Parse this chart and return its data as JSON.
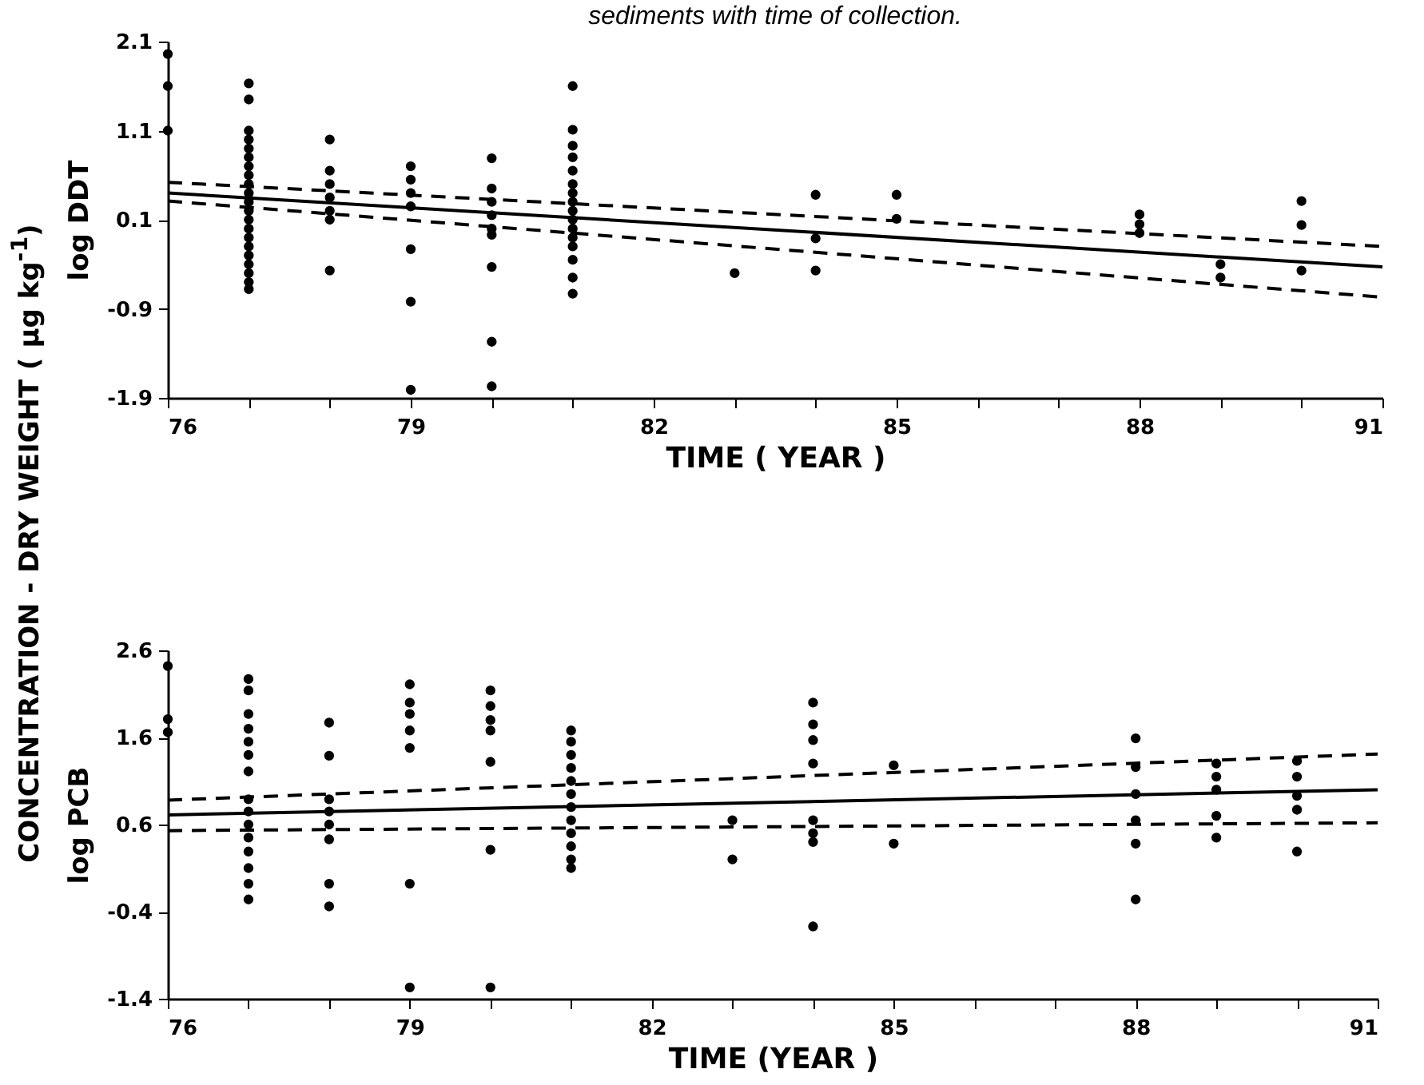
{
  "chart_data": [
    {
      "type": "scatter",
      "title": "sediments with time of collection.",
      "xlabel": "TIME ( YEAR )",
      "ylabel": "log DDT",
      "annotations": [
        "CONCENTRATION - DRY WEIGHT ( µg kg$^{-1}$)"
      ],
      "grid": false,
      "xlim": [
        76,
        91
      ],
      "xticks": [
        76,
        {
          "value": 77,
          "label": null
        },
        {
          "value": 78,
          "label": null
        },
        79,
        {
          "value": 80,
          "label": null
        },
        {
          "value": 81,
          "label": null
        },
        82,
        {
          "value": 83,
          "label": null
        },
        {
          "value": 84,
          "label": null
        },
        85,
        {
          "value": 86,
          "label": null
        },
        {
          "value": 87,
          "label": null
        },
        88,
        {
          "value": 89,
          "label": null
        },
        {
          "value": 90,
          "label": null
        },
        91
      ],
      "ylim": [
        -1.9,
        2.1
      ],
      "yticks": [
        -1.9,
        -0.9,
        0.1,
        1.1,
        2.1
      ],
      "series": [
        {
          "marker": "circle",
          "color": "#000000",
          "x": [
            76,
            76,
            76,
            77,
            77,
            77,
            77,
            77,
            77,
            77,
            77,
            77,
            77,
            77,
            77,
            77,
            77,
            77,
            77,
            77,
            77,
            77,
            77,
            77,
            78,
            78,
            78,
            78,
            78,
            78,
            78,
            79,
            79,
            79,
            79,
            79,
            79,
            79,
            80,
            80,
            80,
            80,
            80,
            80,
            80,
            80,
            80,
            81,
            81,
            81,
            81,
            81,
            81,
            81,
            81,
            81,
            81,
            81,
            81,
            81,
            81,
            81,
            81,
            83,
            84,
            84,
            84,
            85,
            85,
            88,
            88,
            88,
            89,
            89,
            90,
            90,
            90
          ],
          "values": [
            1.96,
            1.6,
            1.1,
            1.63,
            1.45,
            1.1,
            1.0,
            0.9,
            0.8,
            0.7,
            0.6,
            0.5,
            0.4,
            0.3,
            0.2,
            0.1,
            0.0,
            -0.1,
            -0.2,
            -0.3,
            -0.4,
            -0.5,
            -0.6,
            -0.68,
            1.0,
            0.65,
            0.5,
            0.35,
            0.2,
            0.1,
            -0.47,
            0.7,
            0.55,
            0.4,
            0.25,
            -0.23,
            -0.82,
            -1.81,
            0.79,
            0.45,
            0.3,
            0.15,
            0.0,
            -0.07,
            -0.43,
            -1.27,
            -1.77,
            1.6,
            1.11,
            0.93,
            0.8,
            0.65,
            0.5,
            0.4,
            0.3,
            0.2,
            0.1,
            0.0,
            -0.1,
            -0.2,
            -0.35,
            -0.55,
            -0.73,
            -0.5,
            0.38,
            -0.11,
            -0.47,
            0.38,
            0.11,
            0.16,
            0.05,
            -0.05,
            -0.4,
            -0.55,
            0.31,
            0.04,
            -0.47
          ]
        },
        {
          "type": "line",
          "color": "#000000",
          "line_style": "solid",
          "x": [
            76,
            91
          ],
          "values": [
            0.4,
            -0.43
          ]
        },
        {
          "type": "line",
          "color": "#000000",
          "line_style": "dashed",
          "x": [
            76,
            91
          ],
          "values": [
            0.52,
            -0.2
          ]
        },
        {
          "type": "line",
          "color": "#000000",
          "line_style": "dashed",
          "x": [
            76,
            91
          ],
          "values": [
            0.31,
            -0.77
          ]
        }
      ]
    },
    {
      "type": "scatter",
      "xlabel": "TIME (YEAR )",
      "ylabel": "log PCB",
      "grid": false,
      "xlim": [
        76,
        91
      ],
      "xticks": [
        76,
        {
          "value": 77,
          "label": null
        },
        {
          "value": 78,
          "label": null
        },
        79,
        {
          "value": 80,
          "label": null
        },
        {
          "value": 81,
          "label": null
        },
        82,
        {
          "value": 83,
          "label": null
        },
        {
          "value": 84,
          "label": null
        },
        85,
        {
          "value": 86,
          "label": null
        },
        {
          "value": 87,
          "label": null
        },
        88,
        {
          "value": 89,
          "label": null
        },
        {
          "value": 90,
          "label": null
        },
        91
      ],
      "ylim": [
        -1.4,
        2.6
      ],
      "yticks": [
        -1.4,
        -0.4,
        0.6,
        1.6,
        2.6
      ],
      "series": [
        {
          "marker": "circle",
          "color": "#000000",
          "x": [
            76,
            76,
            76,
            77,
            77,
            77,
            77,
            77,
            77,
            77,
            77,
            77,
            77,
            77,
            77,
            77,
            77,
            77,
            78,
            78,
            78,
            78,
            78,
            78,
            78,
            78,
            79,
            79,
            79,
            79,
            79,
            79,
            79,
            80,
            80,
            80,
            80,
            80,
            80,
            80,
            81,
            81,
            81,
            81,
            81,
            81,
            81,
            81,
            81,
            81,
            81,
            81,
            83,
            83,
            84,
            84,
            84,
            84,
            84,
            84,
            84,
            84,
            85,
            85,
            88,
            88,
            88,
            88,
            88,
            88,
            89,
            89,
            89,
            89,
            89,
            90,
            90,
            90,
            90,
            90
          ],
          "values": [
            2.42,
            1.81,
            1.66,
            2.27,
            2.14,
            1.87,
            1.7,
            1.55,
            1.4,
            1.21,
            0.89,
            0.75,
            0.6,
            0.45,
            0.29,
            0.1,
            -0.08,
            -0.26,
            1.77,
            1.39,
            0.89,
            0.75,
            0.6,
            0.43,
            -0.08,
            -0.34,
            2.21,
            2.0,
            1.87,
            1.68,
            1.48,
            -0.08,
            -1.27,
            2.14,
            1.96,
            1.8,
            1.68,
            1.32,
            0.31,
            -1.27,
            1.68,
            1.55,
            1.4,
            1.25,
            1.1,
            0.95,
            0.8,
            0.65,
            0.5,
            0.35,
            0.2,
            0.1,
            0.65,
            0.2,
            2.0,
            1.75,
            1.57,
            1.3,
            0.65,
            0.5,
            0.4,
            -0.57,
            1.28,
            0.38,
            1.59,
            1.26,
            0.95,
            0.65,
            0.38,
            -0.26,
            1.3,
            1.15,
            1.0,
            0.7,
            0.45,
            1.33,
            1.15,
            0.93,
            0.77,
            0.29
          ]
        },
        {
          "type": "line",
          "color": "#000000",
          "line_style": "solid",
          "x": [
            76,
            91
          ],
          "values": [
            0.71,
            1.0
          ]
        },
        {
          "type": "line",
          "color": "#000000",
          "line_style": "dashed",
          "x": [
            76,
            91
          ],
          "values": [
            0.88,
            1.41
          ]
        },
        {
          "type": "line",
          "color": "#000000",
          "line_style": "dashed",
          "x": [
            76,
            91
          ],
          "values": [
            0.53,
            0.62
          ]
        }
      ]
    }
  ]
}
